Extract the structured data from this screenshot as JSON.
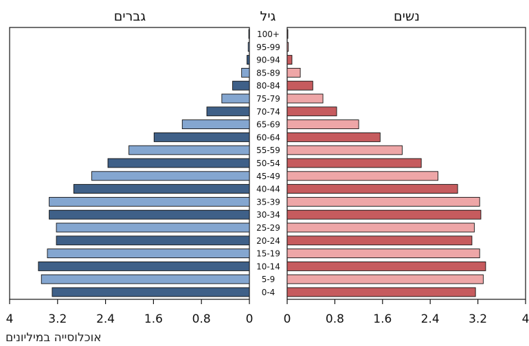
{
  "chart_data": {
    "type": "bar",
    "orientation": "horizontal-population-pyramid",
    "headers": {
      "left": "גברים",
      "center": "גיל",
      "right": "נשים"
    },
    "footer": "אוכלוסייה במיליונים",
    "categories": [
      "100+",
      "95-99",
      "90-94",
      "85-89",
      "80-84",
      "75-79",
      "70-74",
      "65-69",
      "60-64",
      "55-59",
      "50-54",
      "45-49",
      "40-44",
      "35-39",
      "30-34",
      "25-29",
      "20-24",
      "15-19",
      "10-14",
      "5-9",
      "0-4"
    ],
    "series": [
      {
        "side": "left",
        "values": [
          0.01,
          0.02,
          0.04,
          0.13,
          0.28,
          0.46,
          0.71,
          1.12,
          1.59,
          2.01,
          2.36,
          2.63,
          2.93,
          3.34,
          3.34,
          3.22,
          3.22,
          3.37,
          3.52,
          3.47,
          3.29
        ]
      },
      {
        "side": "right",
        "values": [
          0.01,
          0.02,
          0.08,
          0.22,
          0.43,
          0.6,
          0.83,
          1.2,
          1.56,
          1.93,
          2.25,
          2.53,
          2.86,
          3.23,
          3.25,
          3.14,
          3.1,
          3.23,
          3.33,
          3.29,
          3.16
        ]
      }
    ],
    "axis_ticks": [
      "0",
      "0.8",
      "1.6",
      "2.4",
      "3.2",
      "4"
    ],
    "xlim": [
      0,
      4
    ],
    "colors": {
      "male_dark": "#3f6088",
      "male_light": "#84a6d0",
      "female_dark": "#c65b5e",
      "female_light": "#eea6a7",
      "outline": "#111111"
    }
  }
}
